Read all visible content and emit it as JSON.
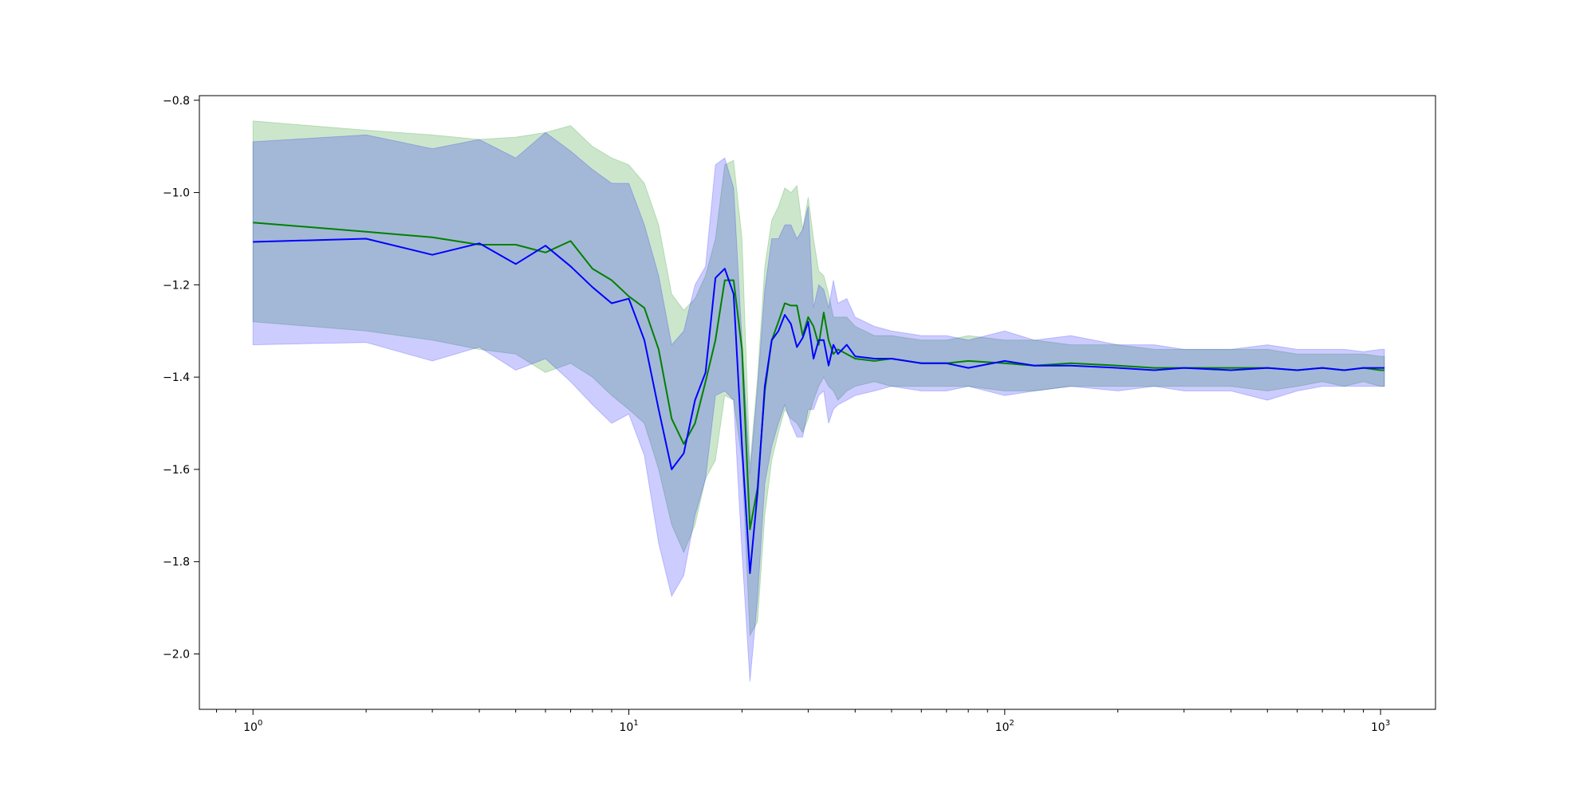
{
  "chart_data": {
    "type": "line",
    "title": "",
    "xlabel": "",
    "ylabel": "",
    "xscale": "log",
    "xlim": [
      0.72,
      1400
    ],
    "ylim": [
      -2.12,
      -0.79
    ],
    "grid": false,
    "legend": "none",
    "x_ticks": [
      {
        "value": 1,
        "base": "10",
        "exp": "0"
      },
      {
        "value": 10,
        "base": "10",
        "exp": "1"
      },
      {
        "value": 100,
        "base": "10",
        "exp": "2"
      },
      {
        "value": 1000,
        "base": "10",
        "exp": "3"
      }
    ],
    "y_ticks": [
      {
        "value": -0.8,
        "label": "−0.8"
      },
      {
        "value": -1.0,
        "label": "−1.0"
      },
      {
        "value": -1.2,
        "label": "−1.2"
      },
      {
        "value": -1.4,
        "label": "−1.4"
      },
      {
        "value": -1.6,
        "label": "−1.6"
      },
      {
        "value": -1.8,
        "label": "−1.8"
      },
      {
        "value": -2.0,
        "label": "−2.0"
      }
    ],
    "series": [
      {
        "color": "#008000",
        "band_color": "#008000",
        "band_opacity": 0.2,
        "x": [
          1,
          2,
          3,
          4,
          5,
          6,
          7,
          8,
          9,
          10,
          11,
          12,
          13,
          14,
          15,
          16,
          17,
          18,
          19,
          20,
          21,
          22,
          23,
          24,
          25,
          26,
          27,
          28,
          29,
          30,
          31,
          32,
          33,
          34,
          35,
          36,
          38,
          40,
          45,
          50,
          60,
          70,
          80,
          100,
          120,
          150,
          200,
          250,
          300,
          400,
          500,
          600,
          700,
          800,
          900,
          1000,
          1024
        ],
        "mean": [
          -1.065,
          -1.085,
          -1.097,
          -1.113,
          -1.113,
          -1.13,
          -1.105,
          -1.165,
          -1.19,
          -1.225,
          -1.25,
          -1.34,
          -1.49,
          -1.545,
          -1.5,
          -1.41,
          -1.32,
          -1.19,
          -1.19,
          -1.34,
          -1.73,
          -1.64,
          -1.43,
          -1.32,
          -1.28,
          -1.24,
          -1.245,
          -1.245,
          -1.31,
          -1.27,
          -1.29,
          -1.33,
          -1.26,
          -1.32,
          -1.35,
          -1.34,
          -1.35,
          -1.36,
          -1.365,
          -1.36,
          -1.37,
          -1.37,
          -1.365,
          -1.37,
          -1.375,
          -1.37,
          -1.375,
          -1.38,
          -1.38,
          -1.38,
          -1.38,
          -1.385,
          -1.38,
          -1.385,
          -1.38,
          -1.385,
          -1.385
        ],
        "lower": [
          -1.28,
          -1.3,
          -1.32,
          -1.34,
          -1.35,
          -1.39,
          -1.37,
          -1.4,
          -1.44,
          -1.47,
          -1.5,
          -1.6,
          -1.72,
          -1.78,
          -1.72,
          -1.62,
          -1.58,
          -1.44,
          -1.45,
          -1.58,
          -1.96,
          -1.93,
          -1.7,
          -1.58,
          -1.52,
          -1.47,
          -1.49,
          -1.5,
          -1.52,
          -1.49,
          -1.45,
          -1.42,
          -1.4,
          -1.42,
          -1.43,
          -1.45,
          -1.43,
          -1.42,
          -1.41,
          -1.42,
          -1.42,
          -1.42,
          -1.42,
          -1.43,
          -1.43,
          -1.42,
          -1.42,
          -1.42,
          -1.42,
          -1.42,
          -1.43,
          -1.42,
          -1.41,
          -1.42,
          -1.41,
          -1.42,
          -1.42
        ],
        "upper": [
          -0.845,
          -0.865,
          -0.875,
          -0.885,
          -0.88,
          -0.87,
          -0.855,
          -0.9,
          -0.925,
          -0.94,
          -0.98,
          -1.07,
          -1.22,
          -1.255,
          -1.23,
          -1.18,
          -1.1,
          -0.94,
          -0.93,
          -1.1,
          -1.59,
          -1.4,
          -1.16,
          -1.06,
          -1.03,
          -0.99,
          -1.0,
          -0.985,
          -1.08,
          -1.01,
          -1.1,
          -1.17,
          -1.18,
          -1.22,
          -1.27,
          -1.27,
          -1.27,
          -1.29,
          -1.31,
          -1.31,
          -1.32,
          -1.32,
          -1.31,
          -1.32,
          -1.32,
          -1.33,
          -1.33,
          -1.34,
          -1.34,
          -1.34,
          -1.34,
          -1.35,
          -1.35,
          -1.35,
          -1.35,
          -1.355,
          -1.355
        ]
      },
      {
        "color": "#0000ff",
        "band_color": "#0000ff",
        "band_opacity": 0.2,
        "x": [
          1,
          2,
          3,
          4,
          5,
          6,
          7,
          8,
          9,
          10,
          11,
          12,
          13,
          14,
          15,
          16,
          17,
          18,
          19,
          20,
          21,
          22,
          23,
          24,
          25,
          26,
          27,
          28,
          29,
          30,
          31,
          32,
          33,
          34,
          35,
          36,
          38,
          40,
          45,
          50,
          60,
          70,
          80,
          100,
          120,
          150,
          200,
          250,
          300,
          400,
          500,
          600,
          700,
          800,
          900,
          1000,
          1024
        ],
        "mean": [
          -1.107,
          -1.1,
          -1.135,
          -1.11,
          -1.155,
          -1.115,
          -1.16,
          -1.205,
          -1.24,
          -1.23,
          -1.32,
          -1.47,
          -1.6,
          -1.565,
          -1.45,
          -1.39,
          -1.185,
          -1.165,
          -1.22,
          -1.55,
          -1.825,
          -1.65,
          -1.42,
          -1.32,
          -1.3,
          -1.265,
          -1.285,
          -1.335,
          -1.315,
          -1.28,
          -1.36,
          -1.32,
          -1.32,
          -1.375,
          -1.33,
          -1.35,
          -1.33,
          -1.355,
          -1.36,
          -1.36,
          -1.37,
          -1.37,
          -1.38,
          -1.365,
          -1.375,
          -1.375,
          -1.38,
          -1.385,
          -1.38,
          -1.385,
          -1.38,
          -1.385,
          -1.38,
          -1.385,
          -1.38,
          -1.38,
          -1.38
        ],
        "lower": [
          -1.33,
          -1.325,
          -1.365,
          -1.335,
          -1.385,
          -1.36,
          -1.41,
          -1.46,
          -1.5,
          -1.48,
          -1.57,
          -1.76,
          -1.875,
          -1.83,
          -1.7,
          -1.62,
          -1.44,
          -1.43,
          -1.45,
          -1.78,
          -2.06,
          -1.88,
          -1.63,
          -1.55,
          -1.5,
          -1.46,
          -1.5,
          -1.53,
          -1.53,
          -1.47,
          -1.47,
          -1.44,
          -1.43,
          -1.5,
          -1.47,
          -1.46,
          -1.45,
          -1.44,
          -1.43,
          -1.42,
          -1.43,
          -1.43,
          -1.42,
          -1.44,
          -1.43,
          -1.42,
          -1.43,
          -1.42,
          -1.43,
          -1.43,
          -1.45,
          -1.43,
          -1.42,
          -1.42,
          -1.42,
          -1.42,
          -1.42
        ],
        "upper": [
          -0.89,
          -0.875,
          -0.905,
          -0.885,
          -0.925,
          -0.87,
          -0.91,
          -0.95,
          -0.98,
          -0.98,
          -1.07,
          -1.18,
          -1.33,
          -1.3,
          -1.2,
          -1.16,
          -0.94,
          -0.925,
          -0.99,
          -1.32,
          -1.61,
          -1.42,
          -1.21,
          -1.1,
          -1.1,
          -1.07,
          -1.07,
          -1.1,
          -1.08,
          -1.03,
          -1.25,
          -1.2,
          -1.21,
          -1.25,
          -1.19,
          -1.24,
          -1.23,
          -1.27,
          -1.29,
          -1.3,
          -1.31,
          -1.31,
          -1.32,
          -1.3,
          -1.32,
          -1.31,
          -1.33,
          -1.33,
          -1.34,
          -1.34,
          -1.33,
          -1.34,
          -1.34,
          -1.34,
          -1.345,
          -1.34,
          -1.34
        ]
      }
    ]
  }
}
